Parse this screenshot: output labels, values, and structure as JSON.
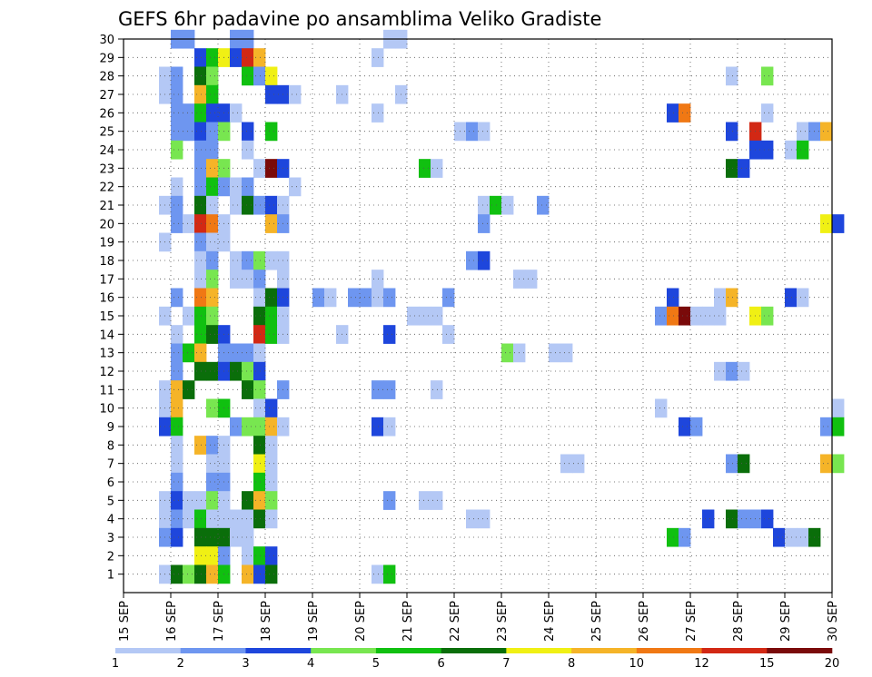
{
  "chart_data": {
    "type": "heatmap",
    "title": "GEFS 6hr padavine po ansamblima Veliko Gradiste",
    "xlabel": "",
    "ylabel": "",
    "x_ticks": [
      "15 SEP",
      "16 SEP",
      "17 SEP",
      "18 SEP",
      "19 SEP",
      "20 SEP",
      "21 SEP",
      "22 SEP",
      "23 SEP",
      "24 SEP",
      "25 SEP",
      "26 SEP",
      "27 SEP",
      "28 SEP",
      "29 SEP",
      "30 SEP"
    ],
    "y_ticks": [
      "1",
      "2",
      "3",
      "4",
      "5",
      "6",
      "7",
      "8",
      "9",
      "10",
      "11",
      "12",
      "13",
      "14",
      "15",
      "16",
      "17",
      "18",
      "19",
      "20",
      "21",
      "22",
      "23",
      "24",
      "25",
      "26",
      "27",
      "28",
      "29",
      "30"
    ],
    "x_steps_per_day": 4,
    "y_range": [
      0,
      30
    ],
    "grid": true,
    "colorbar": {
      "labels": [
        "1",
        "2",
        "3",
        "4",
        "5",
        "6",
        "7",
        "8",
        "10",
        "12",
        "15",
        "20"
      ],
      "colors": [
        "#b4c8f5",
        "#6e96f0",
        "#1e46dc",
        "#78e650",
        "#10c010",
        "#0a6e0a",
        "#f0f014",
        "#f5b428",
        "#f07814",
        "#d22814",
        "#7a0a0a"
      ]
    },
    "cells": [
      [
        4,
        30,
        1
      ],
      [
        5,
        30,
        1
      ],
      [
        9,
        30,
        1
      ],
      [
        10,
        30,
        1
      ],
      [
        22,
        30,
        0
      ],
      [
        23,
        30,
        0
      ],
      [
        6,
        29,
        2
      ],
      [
        7,
        29,
        4
      ],
      [
        8,
        29,
        6
      ],
      [
        9,
        29,
        2
      ],
      [
        10,
        29,
        9
      ],
      [
        11,
        29,
        7
      ],
      [
        21,
        29,
        0
      ],
      [
        3,
        28,
        0
      ],
      [
        4,
        28,
        1
      ],
      [
        6,
        28,
        5
      ],
      [
        7,
        28,
        3
      ],
      [
        10,
        28,
        4
      ],
      [
        11,
        28,
        1
      ],
      [
        12,
        28,
        6
      ],
      [
        51,
        28,
        0
      ],
      [
        54,
        28,
        3
      ],
      [
        3,
        27,
        0
      ],
      [
        4,
        27,
        1
      ],
      [
        6,
        27,
        7
      ],
      [
        7,
        27,
        4
      ],
      [
        12,
        27,
        2
      ],
      [
        13,
        27,
        2
      ],
      [
        14,
        27,
        0
      ],
      [
        18,
        27,
        0
      ],
      [
        23,
        27,
        0
      ],
      [
        4,
        26,
        1
      ],
      [
        5,
        26,
        1
      ],
      [
        6,
        26,
        4
      ],
      [
        7,
        26,
        2
      ],
      [
        8,
        26,
        2
      ],
      [
        9,
        26,
        0
      ],
      [
        21,
        26,
        0
      ],
      [
        46,
        26,
        2
      ],
      [
        47,
        26,
        8
      ],
      [
        54,
        26,
        0
      ],
      [
        4,
        25,
        1
      ],
      [
        5,
        25,
        1
      ],
      [
        6,
        25,
        2
      ],
      [
        7,
        25,
        1
      ],
      [
        8,
        25,
        3
      ],
      [
        10,
        25,
        2
      ],
      [
        12,
        25,
        4
      ],
      [
        28,
        25,
        0
      ],
      [
        29,
        25,
        1
      ],
      [
        30,
        25,
        0
      ],
      [
        51,
        25,
        2
      ],
      [
        53,
        25,
        9
      ],
      [
        57,
        25,
        0
      ],
      [
        58,
        25,
        1
      ],
      [
        59,
        25,
        7
      ],
      [
        4,
        24,
        3
      ],
      [
        6,
        24,
        1
      ],
      [
        7,
        24,
        1
      ],
      [
        10,
        24,
        0
      ],
      [
        53,
        24,
        2
      ],
      [
        54,
        24,
        2
      ],
      [
        56,
        24,
        0
      ],
      [
        57,
        24,
        4
      ],
      [
        6,
        23,
        1
      ],
      [
        7,
        23,
        7
      ],
      [
        8,
        23,
        3
      ],
      [
        11,
        23,
        0
      ],
      [
        12,
        23,
        10
      ],
      [
        13,
        23,
        2
      ],
      [
        25,
        23,
        4
      ],
      [
        26,
        23,
        0
      ],
      [
        51,
        23,
        5
      ],
      [
        52,
        23,
        2
      ],
      [
        4,
        22,
        0
      ],
      [
        6,
        22,
        1
      ],
      [
        7,
        22,
        4
      ],
      [
        8,
        22,
        1
      ],
      [
        9,
        22,
        0
      ],
      [
        10,
        22,
        1
      ],
      [
        14,
        22,
        0
      ],
      [
        3,
        21,
        0
      ],
      [
        4,
        21,
        1
      ],
      [
        6,
        21,
        5
      ],
      [
        7,
        21,
        0
      ],
      [
        9,
        21,
        0
      ],
      [
        10,
        21,
        5
      ],
      [
        11,
        21,
        1
      ],
      [
        12,
        21,
        2
      ],
      [
        13,
        21,
        0
      ],
      [
        30,
        21,
        0
      ],
      [
        31,
        21,
        4
      ],
      [
        32,
        21,
        0
      ],
      [
        35,
        21,
        1
      ],
      [
        4,
        20,
        1
      ],
      [
        5,
        20,
        0
      ],
      [
        6,
        20,
        9
      ],
      [
        7,
        20,
        8
      ],
      [
        8,
        20,
        0
      ],
      [
        12,
        20,
        7
      ],
      [
        13,
        20,
        1
      ],
      [
        30,
        20,
        1
      ],
      [
        59,
        20,
        6
      ],
      [
        60,
        20,
        2
      ],
      [
        3,
        19,
        0
      ],
      [
        6,
        19,
        1
      ],
      [
        7,
        19,
        0
      ],
      [
        8,
        19,
        0
      ],
      [
        6,
        18,
        0
      ],
      [
        7,
        18,
        1
      ],
      [
        9,
        18,
        0
      ],
      [
        10,
        18,
        1
      ],
      [
        11,
        18,
        3
      ],
      [
        12,
        18,
        0
      ],
      [
        13,
        18,
        0
      ],
      [
        29,
        18,
        1
      ],
      [
        30,
        18,
        2
      ],
      [
        6,
        17,
        0
      ],
      [
        7,
        17,
        3
      ],
      [
        9,
        17,
        0
      ],
      [
        10,
        17,
        0
      ],
      [
        11,
        17,
        1
      ],
      [
        13,
        17,
        0
      ],
      [
        21,
        17,
        0
      ],
      [
        33,
        17,
        0
      ],
      [
        34,
        17,
        0
      ],
      [
        4,
        16,
        1
      ],
      [
        6,
        16,
        8
      ],
      [
        7,
        16,
        7
      ],
      [
        11,
        16,
        0
      ],
      [
        12,
        16,
        5
      ],
      [
        13,
        16,
        2
      ],
      [
        16,
        16,
        1
      ],
      [
        17,
        16,
        0
      ],
      [
        19,
        16,
        1
      ],
      [
        20,
        16,
        1
      ],
      [
        21,
        16,
        0
      ],
      [
        22,
        16,
        1
      ],
      [
        27,
        16,
        1
      ],
      [
        46,
        16,
        2
      ],
      [
        50,
        16,
        0
      ],
      [
        51,
        16,
        7
      ],
      [
        56,
        16,
        2
      ],
      [
        57,
        16,
        0
      ],
      [
        3,
        15,
        0
      ],
      [
        5,
        15,
        0
      ],
      [
        6,
        15,
        4
      ],
      [
        7,
        15,
        3
      ],
      [
        11,
        15,
        5
      ],
      [
        12,
        15,
        4
      ],
      [
        13,
        15,
        0
      ],
      [
        24,
        15,
        0
      ],
      [
        25,
        15,
        0
      ],
      [
        26,
        15,
        0
      ],
      [
        45,
        15,
        1
      ],
      [
        46,
        15,
        8
      ],
      [
        47,
        15,
        10
      ],
      [
        48,
        15,
        0
      ],
      [
        49,
        15,
        0
      ],
      [
        50,
        15,
        0
      ],
      [
        53,
        15,
        6
      ],
      [
        54,
        15,
        3
      ],
      [
        4,
        14,
        0
      ],
      [
        6,
        14,
        4
      ],
      [
        7,
        14,
        5
      ],
      [
        8,
        14,
        2
      ],
      [
        11,
        14,
        9
      ],
      [
        12,
        14,
        4
      ],
      [
        13,
        14,
        0
      ],
      [
        18,
        14,
        0
      ],
      [
        22,
        14,
        2
      ],
      [
        27,
        14,
        0
      ],
      [
        4,
        13,
        1
      ],
      [
        5,
        13,
        4
      ],
      [
        6,
        13,
        7
      ],
      [
        8,
        13,
        1
      ],
      [
        9,
        13,
        1
      ],
      [
        10,
        13,
        1
      ],
      [
        11,
        13,
        0
      ],
      [
        32,
        13,
        3
      ],
      [
        33,
        13,
        0
      ],
      [
        36,
        13,
        0
      ],
      [
        37,
        13,
        0
      ],
      [
        4,
        12,
        1
      ],
      [
        6,
        12,
        5
      ],
      [
        7,
        12,
        5
      ],
      [
        8,
        12,
        2
      ],
      [
        9,
        12,
        5
      ],
      [
        10,
        12,
        3
      ],
      [
        11,
        12,
        2
      ],
      [
        50,
        12,
        0
      ],
      [
        51,
        12,
        1
      ],
      [
        52,
        12,
        0
      ],
      [
        3,
        11,
        0
      ],
      [
        4,
        11,
        7
      ],
      [
        5,
        11,
        5
      ],
      [
        10,
        11,
        5
      ],
      [
        11,
        11,
        3
      ],
      [
        13,
        11,
        1
      ],
      [
        21,
        11,
        1
      ],
      [
        22,
        11,
        1
      ],
      [
        26,
        11,
        0
      ],
      [
        3,
        10,
        0
      ],
      [
        4,
        10,
        7
      ],
      [
        7,
        10,
        3
      ],
      [
        8,
        10,
        4
      ],
      [
        11,
        10,
        0
      ],
      [
        12,
        10,
        2
      ],
      [
        45,
        10,
        0
      ],
      [
        60,
        10,
        0
      ],
      [
        3,
        9,
        2
      ],
      [
        4,
        9,
        4
      ],
      [
        9,
        9,
        1
      ],
      [
        10,
        9,
        3
      ],
      [
        11,
        9,
        3
      ],
      [
        12,
        9,
        7
      ],
      [
        13,
        9,
        0
      ],
      [
        21,
        9,
        2
      ],
      [
        22,
        9,
        0
      ],
      [
        47,
        9,
        2
      ],
      [
        48,
        9,
        1
      ],
      [
        59,
        9,
        1
      ],
      [
        60,
        9,
        4
      ],
      [
        4,
        8,
        0
      ],
      [
        6,
        8,
        7
      ],
      [
        7,
        8,
        1
      ],
      [
        8,
        8,
        0
      ],
      [
        11,
        8,
        5
      ],
      [
        12,
        8,
        0
      ],
      [
        4,
        7,
        0
      ],
      [
        7,
        7,
        0
      ],
      [
        8,
        7,
        0
      ],
      [
        11,
        7,
        6
      ],
      [
        12,
        7,
        0
      ],
      [
        37,
        7,
        0
      ],
      [
        38,
        7,
        0
      ],
      [
        51,
        7,
        1
      ],
      [
        52,
        7,
        5
      ],
      [
        59,
        7,
        7
      ],
      [
        60,
        7,
        3
      ],
      [
        4,
        6,
        1
      ],
      [
        7,
        6,
        1
      ],
      [
        8,
        6,
        1
      ],
      [
        11,
        6,
        4
      ],
      [
        12,
        6,
        0
      ],
      [
        3,
        5,
        0
      ],
      [
        4,
        5,
        2
      ],
      [
        5,
        5,
        0
      ],
      [
        6,
        5,
        0
      ],
      [
        7,
        5,
        3
      ],
      [
        8,
        5,
        0
      ],
      [
        10,
        5,
        5
      ],
      [
        11,
        5,
        7
      ],
      [
        12,
        5,
        3
      ],
      [
        22,
        5,
        1
      ],
      [
        25,
        5,
        0
      ],
      [
        26,
        5,
        0
      ],
      [
        3,
        4,
        0
      ],
      [
        4,
        4,
        1
      ],
      [
        5,
        4,
        0
      ],
      [
        6,
        4,
        4
      ],
      [
        7,
        4,
        0
      ],
      [
        8,
        4,
        0
      ],
      [
        9,
        4,
        0
      ],
      [
        10,
        4,
        0
      ],
      [
        11,
        4,
        5
      ],
      [
        12,
        4,
        0
      ],
      [
        29,
        4,
        0
      ],
      [
        30,
        4,
        0
      ],
      [
        49,
        4,
        2
      ],
      [
        51,
        4,
        5
      ],
      [
        52,
        4,
        1
      ],
      [
        53,
        4,
        1
      ],
      [
        54,
        4,
        2
      ],
      [
        3,
        3,
        1
      ],
      [
        4,
        3,
        2
      ],
      [
        6,
        3,
        5
      ],
      [
        7,
        3,
        5
      ],
      [
        8,
        3,
        5
      ],
      [
        9,
        3,
        0
      ],
      [
        10,
        3,
        0
      ],
      [
        46,
        3,
        4
      ],
      [
        47,
        3,
        1
      ],
      [
        55,
        3,
        2
      ],
      [
        56,
        3,
        0
      ],
      [
        57,
        3,
        0
      ],
      [
        58,
        3,
        5
      ],
      [
        6,
        2,
        6
      ],
      [
        7,
        2,
        6
      ],
      [
        8,
        2,
        1
      ],
      [
        10,
        2,
        0
      ],
      [
        11,
        2,
        4
      ],
      [
        12,
        2,
        2
      ],
      [
        3,
        1,
        0
      ],
      [
        4,
        1,
        5
      ],
      [
        5,
        1,
        3
      ],
      [
        6,
        1,
        5
      ],
      [
        7,
        1,
        7
      ],
      [
        8,
        1,
        4
      ],
      [
        10,
        1,
        7
      ],
      [
        11,
        1,
        2
      ],
      [
        12,
        1,
        5
      ],
      [
        21,
        1,
        0
      ],
      [
        22,
        1,
        4
      ]
    ]
  }
}
